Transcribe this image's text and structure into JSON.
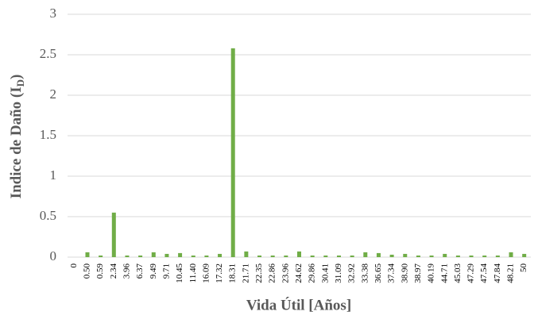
{
  "chart_data": {
    "type": "bar",
    "categories": [
      "0",
      "0.50",
      "0.59",
      "2.34",
      "3.96",
      "6.37",
      "9.49",
      "9.71",
      "10.45",
      "11.40",
      "16.09",
      "17.32",
      "18.31",
      "21.71",
      "22.35",
      "22.86",
      "23.96",
      "24.62",
      "29.86",
      "30.41",
      "31.09",
      "32.92",
      "33.38",
      "36.65",
      "37.34",
      "38.90",
      "38.97",
      "40.19",
      "44.71",
      "45.03",
      "47.29",
      "47.54",
      "47.84",
      "48.21",
      "50"
    ],
    "values": [
      0,
      0.06,
      0.02,
      0.55,
      0.02,
      0.02,
      0.06,
      0.04,
      0.05,
      0.02,
      0.02,
      0.04,
      2.58,
      0.07,
      0.02,
      0.02,
      0.02,
      0.07,
      0.02,
      0.02,
      0.02,
      0.02,
      0.06,
      0.05,
      0.03,
      0.04,
      0.02,
      0.02,
      0.04,
      0.02,
      0.02,
      0.02,
      0.02,
      0.06,
      0.04
    ],
    "color": "#70ad47",
    "ylim": [
      0,
      3
    ],
    "yticks": [
      0,
      0.5,
      1,
      1.5,
      2,
      2.5,
      3
    ],
    "grid": true,
    "x_label": "Vida Útil [Años]",
    "y_label": {
      "text": "Indice de Daño (I",
      "subscript": "D",
      "close": ")"
    }
  }
}
